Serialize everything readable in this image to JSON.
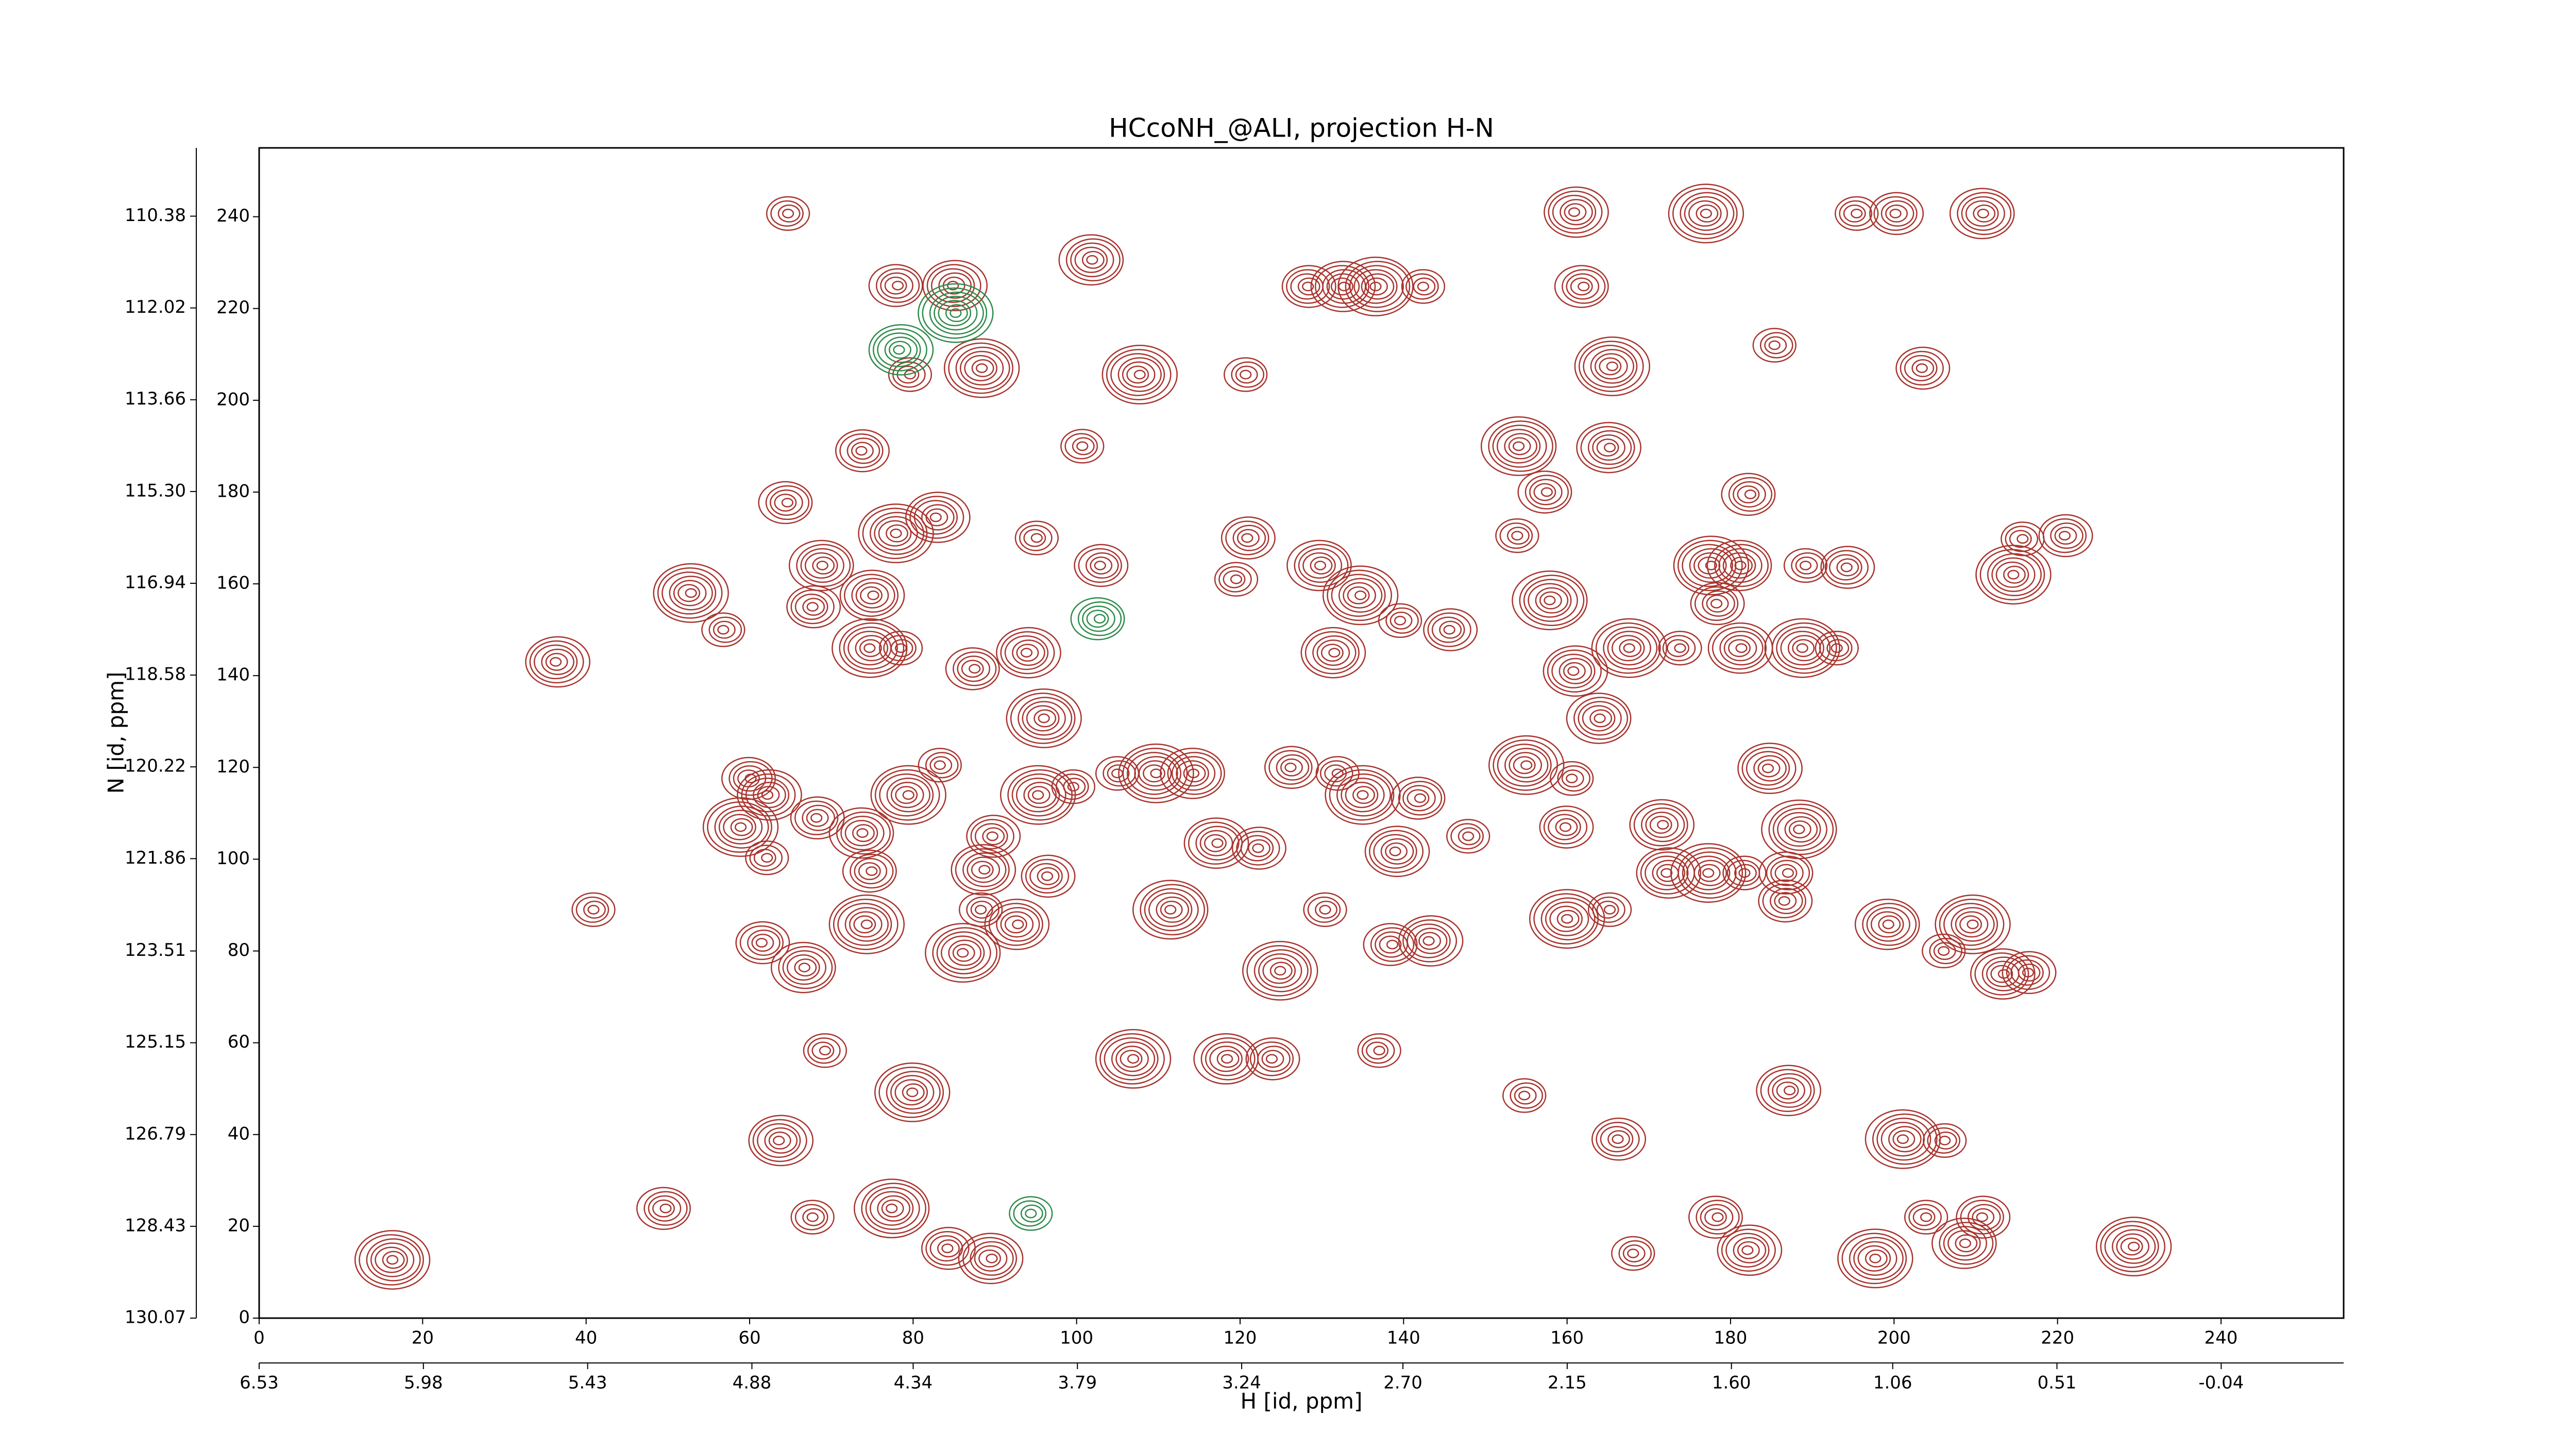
{
  "chart_data": {
    "type": "contour",
    "title": "HCcoNH_@ALI, projection H-N",
    "xlabel": "H [id, ppm]",
    "ylabel": "N [id, ppm]",
    "xlim": [
      0,
      255
    ],
    "ylim": [
      0,
      255
    ],
    "xticks": [
      0,
      20,
      40,
      60,
      80,
      100,
      120,
      140,
      160,
      180,
      200,
      220,
      240
    ],
    "yticks": [
      0,
      20,
      40,
      60,
      80,
      100,
      120,
      140,
      160,
      180,
      200,
      220,
      240
    ],
    "x2lim": [
      6.53,
      -0.45
    ],
    "x2ticks": [
      6.53,
      5.98,
      5.43,
      4.88,
      4.34,
      3.79,
      3.24,
      {
        "value": 2.7,
        "label": "2.70"
      },
      2.15,
      {
        "value": 1.6,
        "label": "1.60"
      },
      1.06,
      0.51,
      -0.04
    ],
    "y2lim": [
      130.07,
      109.16
    ],
    "y2ticks": [
      130.07,
      128.43,
      126.79,
      125.15,
      123.51,
      121.86,
      120.22,
      118.58,
      116.94,
      {
        "value": 115.3,
        "label": "115.30"
      },
      113.66,
      112.02,
      110.38
    ],
    "color": "#a8342e",
    "negative_color": "#2e8b4a",
    "peaks": {
      "x": [
        64.7,
        78,
        85,
        88.4,
        79.5,
        73.8,
        101.9,
        107.6,
        120.8,
        128.3,
        132.6,
        136.7,
        142.4,
        161.9,
        161,
        177,
        195.3,
        200.3,
        210.9,
        165.4,
        185.5,
        203.4,
        165.1,
        154.2,
        100.7,
        64.5,
        82.9,
        77.9,
        95,
        103,
        68.9,
        52.7,
        56.9,
        67.7,
        75,
        74.8,
        78.5,
        87.4,
        94,
        96,
        119.4,
        121,
        129.8,
        134.6,
        139.7,
        145.6,
        131.4,
        158,
        153.9,
        157.4,
        160.9,
        167.6,
        173.7,
        178.4,
        181.2,
        177.5,
        189.3,
        194.2,
        181.2,
        188.9,
        193,
        182.3,
        184.7,
        214.6,
        215.6,
        221,
        164,
        154.9,
        160.7,
        159.8,
        171.6,
        177.4,
        181.7,
        186.9,
        172.3,
        160,
        165.1,
        186.7,
        199.3,
        209.5,
        206.2,
        216.4,
        213.3,
        188.5,
        147.9,
        141.9,
        139.1,
        135,
        131.8,
        126.3,
        114.3,
        109.6,
        105.1,
        122.2,
        117.1,
        111.6,
        130.4,
        138.5,
        143.2,
        124.9,
        136.9,
        124,
        118.4,
        106.8,
        154.9,
        166.2,
        187.1,
        201.2,
        206.2,
        178.3,
        182.2,
        197.7,
        203.8,
        210.9,
        208.7,
        229.2,
        168.2,
        84.2,
        89.5,
        77.5,
        67.7,
        49.6,
        63.7,
        79.9,
        69.1,
        61.6,
        66.7,
        74.2,
        88.4,
        96.4,
        92.7,
        86.2,
        40.9,
        60,
        62.3,
        58.9,
        62,
        68.3,
        73.8,
        79.3,
        83.4,
        89.7,
        88.6,
        95.4,
        99.6,
        74.8,
        36.4,
        16.3
      ],
      "y": [
        240.7,
        225,
        225,
        207,
        205.6,
        189,
        230.6,
        205.6,
        205.6,
        224.8,
        224.8,
        224.8,
        224.8,
        224.8,
        241,
        240.7,
        240.7,
        240.7,
        240.7,
        207.4,
        212,
        207,
        189.7,
        190,
        190,
        177.7,
        174.5,
        171,
        170,
        164,
        164,
        158,
        150,
        155,
        157.5,
        146,
        146,
        141.5,
        145,
        130.7,
        161,
        170,
        164,
        157.5,
        152,
        150,
        145,
        156.4,
        170.5,
        180,
        141,
        146,
        146,
        155.7,
        164,
        164,
        164,
        163.6,
        146,
        146,
        146,
        179.5,
        119.8,
        162,
        169.8,
        170.5,
        130.7,
        120.5,
        117.6,
        107,
        107.5,
        97,
        97,
        97,
        97,
        87,
        89,
        90.9,
        85.8,
        85.8,
        80,
        75.3,
        75,
        106.5,
        105,
        113.3,
        101.7,
        114,
        118.7,
        120,
        118.7,
        118.7,
        118.7,
        102.4,
        103.5,
        89,
        89,
        81.4,
        82.2,
        75.7,
        58.3,
        56.5,
        56.5,
        56.5,
        48.5,
        39,
        49.6,
        39,
        38.7,
        22,
        14.8,
        13,
        22,
        22,
        16.3,
        15.6,
        14.1,
        15.2,
        13,
        23.9,
        22,
        23.9,
        38.7,
        49.2,
        58.3,
        81.8,
        76.4,
        85.8,
        89,
        96.3,
        85.8,
        79.6,
        89,
        117.6,
        114,
        107,
        100.3,
        109,
        105.7,
        114,
        120.5,
        105,
        97.7,
        114,
        115.8,
        97.4,
        143,
        12.7
      ]
    },
    "negative_peaks": {
      "x": [
        94.4,
        102.7,
        78.4,
        85.2
      ],
      "y": [
        22.8,
        152.4,
        211,
        219
      ]
    }
  }
}
